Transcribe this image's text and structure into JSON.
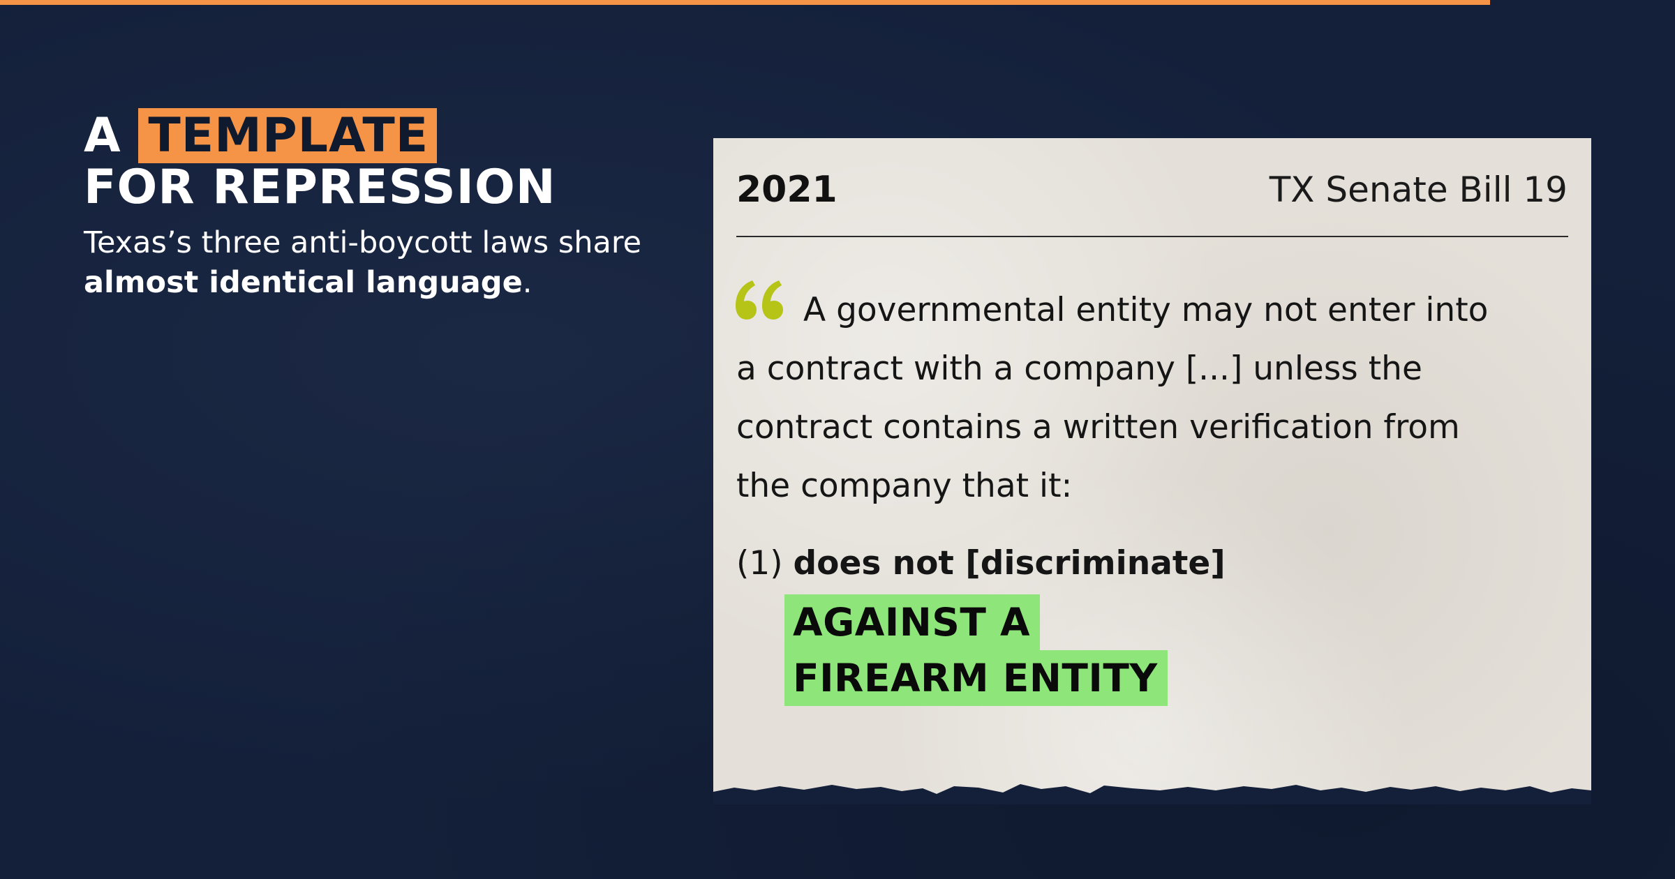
{
  "colors": {
    "background": "#14203a",
    "accent_orange": "#f59446",
    "paper": "#e4e0d9",
    "highlight_green": "#8ee67a",
    "quote_mark": "#b5c416"
  },
  "headline": {
    "prefix": "A",
    "highlight": "TEMPLATE",
    "line2": "FOR REPRESSION"
  },
  "subtitle": {
    "line1": "Texas’s three anti-boycott laws share",
    "bold": "almost identical language",
    "end": "."
  },
  "card": {
    "year": "2021",
    "bill": "TX Senate Bill 19",
    "quote_lines": [
      "A governmental entity may not enter into",
      "a contract with a company [...] unless the",
      "contract contains a written verification from",
      "the company that it:"
    ],
    "clause_number": "(1)",
    "clause_bold": "does not [discriminate]",
    "highlight_lines": [
      "AGAINST A",
      "FIREARM ENTITY"
    ]
  }
}
